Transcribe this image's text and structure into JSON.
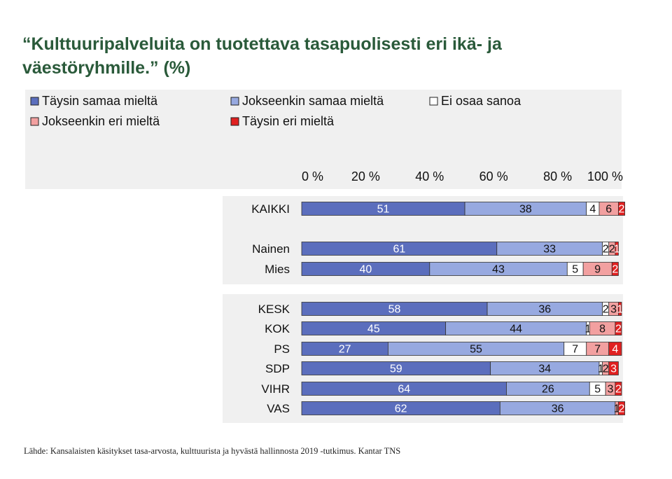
{
  "title": "“Kulttuuripalveluita on tuotettava tasapuolisesti eri ikä- ja väestöryhmille.” (%)",
  "source": "Lähde: Kansalaisten käsitykset tasa-arvosta, kulttuurista ja hyvästä hallinnosta 2019 -tutkimus. Kantar TNS",
  "colors": {
    "taysin_samaa": "#5b6ebd",
    "jokseenkin_samaa": "#97a9e0",
    "ei_osaa": "#ffffff",
    "jokseenkin_eri": "#f2a0a0",
    "taysin_eri": "#e02020"
  },
  "chart_data": {
    "type": "bar",
    "orientation": "horizontal",
    "stacked": true,
    "title": "“Kulttuuripalveluita on tuotettava tasapuolisesti eri ikä- ja väestöryhmille.” (%)",
    "xlim": [
      0,
      100
    ],
    "x_ticks": [
      "0 %",
      "20 %",
      "40 %",
      "60 %",
      "80 %",
      "100 %"
    ],
    "legend_position": "top",
    "categories": [
      "KAIKKI",
      "Nainen",
      "Mies",
      "KESK",
      "KOK",
      "PS",
      "SDP",
      "VIHR",
      "VAS"
    ],
    "series": [
      {
        "name": "Täysin samaa mieltä",
        "color": "#5b6ebd",
        "values": [
          51,
          61,
          40,
          58,
          45,
          27,
          59,
          64,
          62
        ]
      },
      {
        "name": "Jokseenkin samaa mieltä",
        "color": "#97a9e0",
        "values": [
          38,
          33,
          43,
          36,
          44,
          55,
          34,
          26,
          36
        ]
      },
      {
        "name": "Ei osaa sanoa",
        "color": "#ffffff",
        "values": [
          4,
          2,
          5,
          2,
          1,
          7,
          1,
          5,
          0
        ]
      },
      {
        "name": "Jokseenkin eri mieltä",
        "color": "#f2a0a0",
        "values": [
          6,
          2,
          9,
          3,
          8,
          7,
          2,
          3,
          1
        ]
      },
      {
        "name": "Täysin eri mieltä",
        "color": "#e02020",
        "values": [
          2,
          1,
          2,
          1,
          2,
          4,
          3,
          2,
          2
        ]
      }
    ]
  }
}
